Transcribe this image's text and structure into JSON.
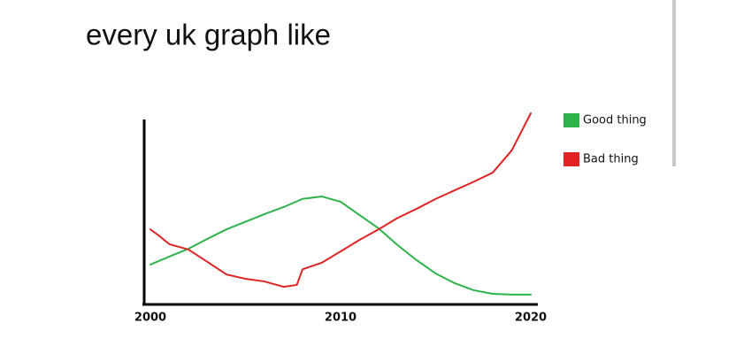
{
  "chart_data": {
    "type": "line",
    "title": "every uk graph like",
    "xlim": [
      2000,
      2020
    ],
    "xticks": [
      2000,
      2010,
      2020
    ],
    "ylim": [
      0,
      100
    ],
    "legend": "right",
    "series": [
      {
        "name": "Good thing",
        "color": "#2db34a",
        "x": [
          2000,
          2001,
          2002,
          2003,
          2004,
          2005,
          2006,
          2007,
          2008,
          2009,
          2010,
          2011,
          2012,
          2013,
          2014,
          2015,
          2016,
          2017,
          2018,
          2019,
          2020
        ],
        "values": [
          20.5,
          24.7,
          28.8,
          34,
          39,
          43,
          47,
          50.7,
          55,
          56.3,
          53.5,
          46.5,
          39.5,
          30.7,
          22.8,
          15.8,
          10.7,
          7,
          5.1,
          4.7,
          4.7
        ]
      },
      {
        "name": "Bad thing",
        "color": "#e02424",
        "x": [
          2000,
          2000.5,
          2001,
          2002,
          2003,
          2004,
          2005,
          2006,
          2007,
          2007.7,
          2008,
          2009,
          2010,
          2011,
          2012,
          2013,
          2014,
          2015,
          2016,
          2017,
          2018,
          2019,
          2020
        ],
        "values": [
          39,
          35.3,
          31.2,
          28.4,
          21.9,
          15.3,
          13,
          11.6,
          8.8,
          9.8,
          18,
          21.4,
          27.4,
          33.5,
          39,
          45,
          49.8,
          55,
          59.5,
          64,
          68.8,
          80.5,
          100
        ]
      }
    ]
  }
}
